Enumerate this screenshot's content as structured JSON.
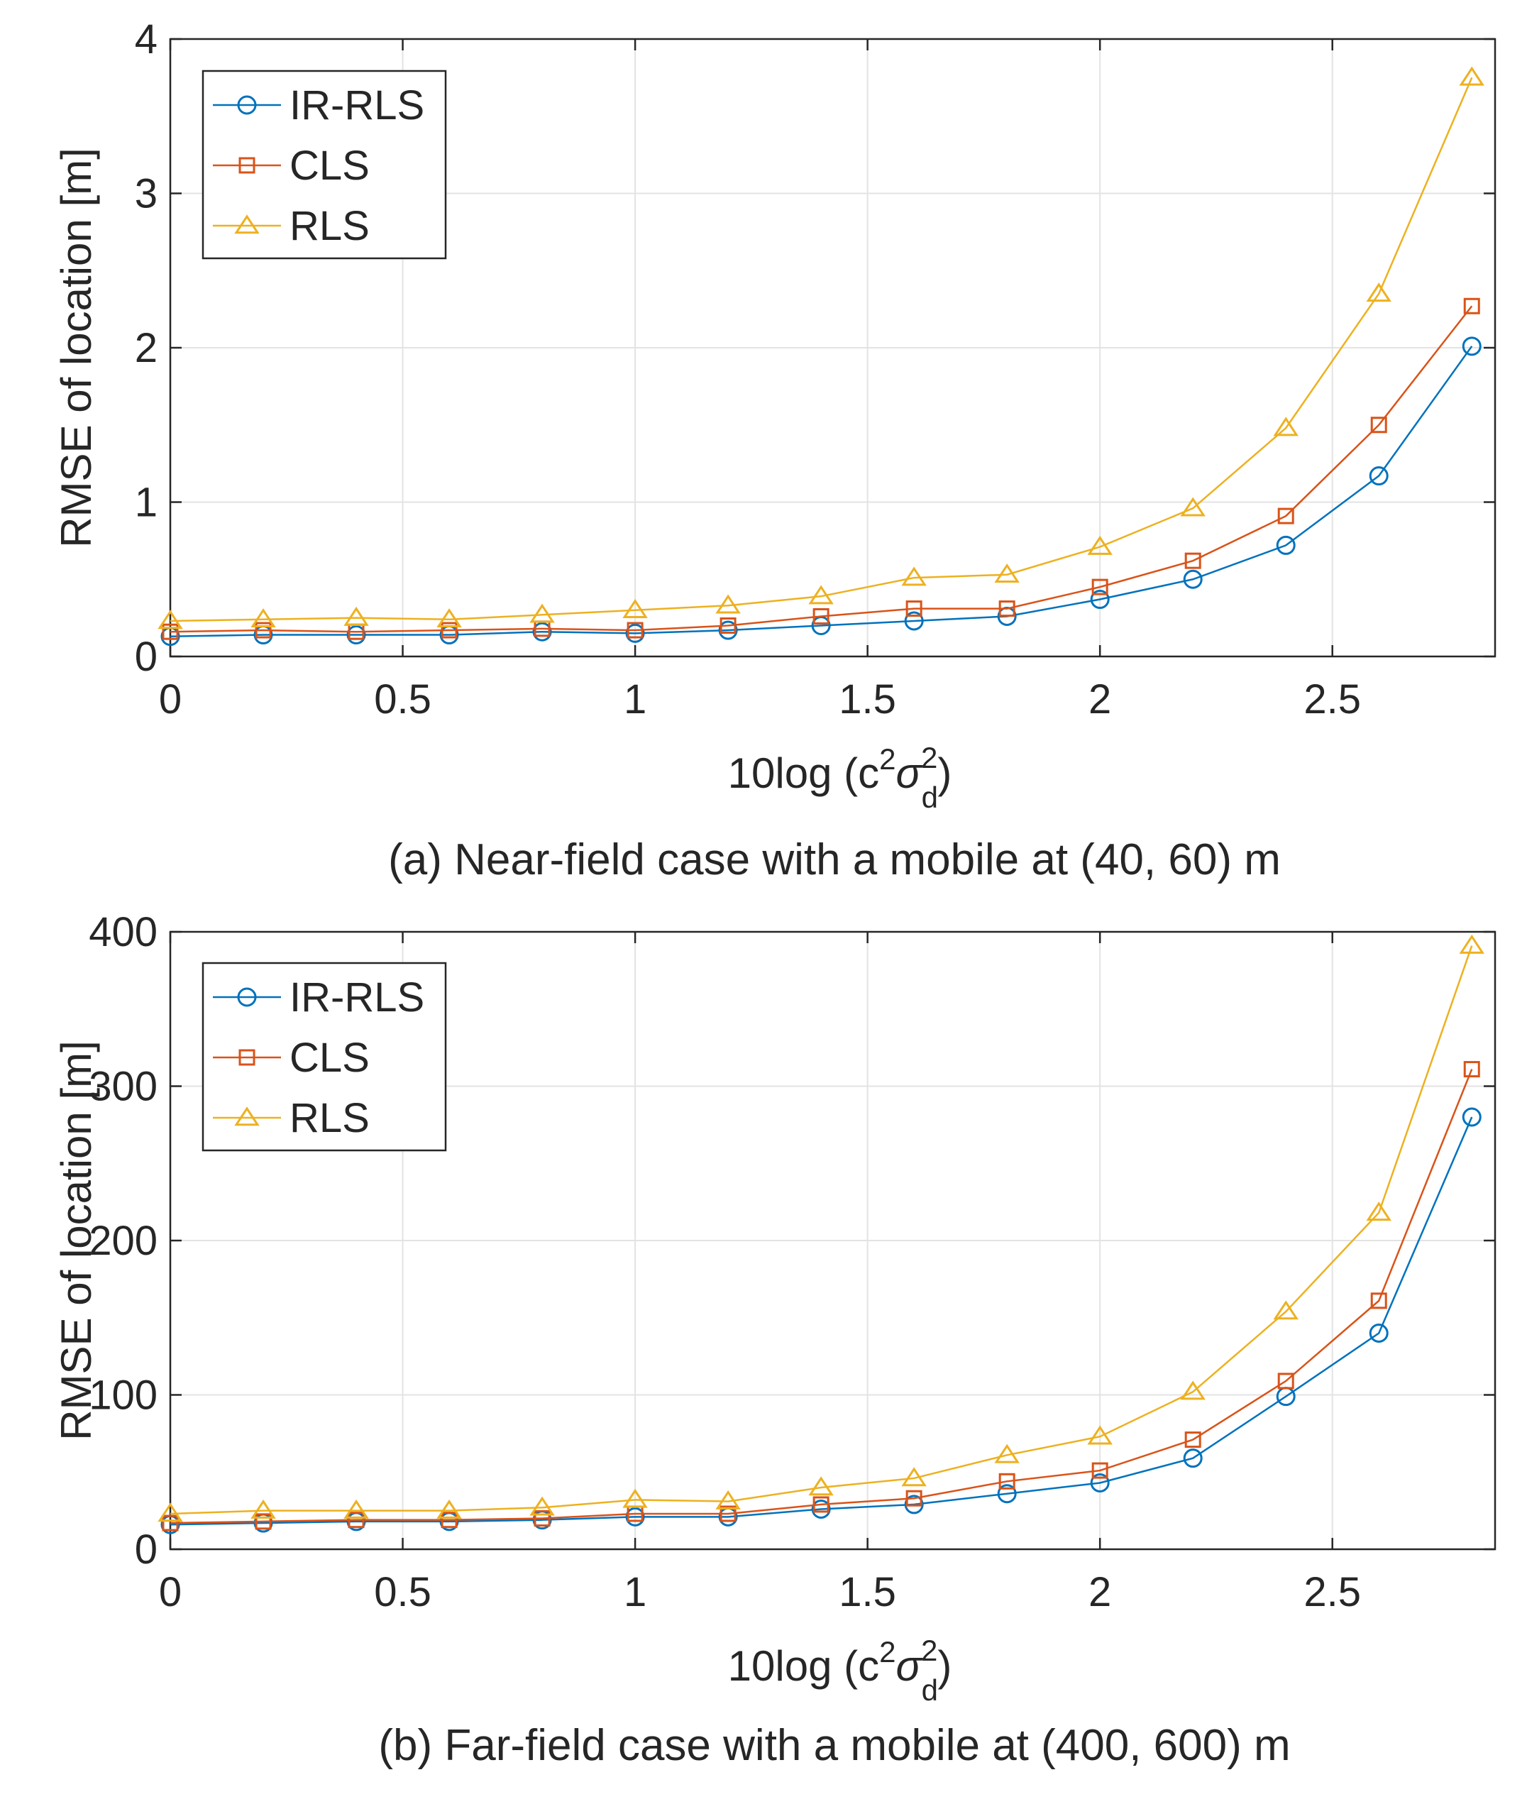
{
  "chart_data": [
    {
      "type": "line",
      "caption": "(a) Near-field case with a mobile at (40, 60) m",
      "xlabel_prefix": "10log (c",
      "xlabel_sigma": "σ",
      "xlabel_sub": "d",
      "xlabel_sup": "2",
      "xlabel_suffix": ")",
      "ylabel": "RMSE of location [m]",
      "xlim": [
        0,
        2.85
      ],
      "ylim": [
        0,
        4
      ],
      "xticks": [
        0,
        0.5,
        1,
        1.5,
        2,
        2.5
      ],
      "xtick_labels": [
        "0",
        "0.5",
        "1",
        "1.5",
        "2",
        "2.5"
      ],
      "yticks": [
        0,
        1,
        2,
        3,
        4
      ],
      "ytick_labels": [
        "0",
        "1",
        "2",
        "3",
        "4"
      ],
      "grid": true,
      "legend_position": "top-left",
      "x": [
        0,
        0.2,
        0.4,
        0.6,
        0.8,
        1.0,
        1.2,
        1.4,
        1.6,
        1.8,
        2.0,
        2.2,
        2.4,
        2.6,
        2.8
      ],
      "series": [
        {
          "name": "IR-RLS",
          "marker": "circle",
          "color": "#0072BD",
          "values": [
            0.13,
            0.14,
            0.14,
            0.14,
            0.16,
            0.15,
            0.17,
            0.2,
            0.23,
            0.26,
            0.37,
            0.5,
            0.72,
            1.17,
            2.01
          ]
        },
        {
          "name": "CLS",
          "marker": "square",
          "color": "#D95319",
          "values": [
            0.16,
            0.17,
            0.16,
            0.17,
            0.18,
            0.17,
            0.2,
            0.26,
            0.31,
            0.31,
            0.45,
            0.62,
            0.91,
            1.5,
            2.27
          ]
        },
        {
          "name": "RLS",
          "marker": "triangle",
          "color": "#EDB120",
          "values": [
            0.23,
            0.24,
            0.25,
            0.24,
            0.27,
            0.3,
            0.33,
            0.39,
            0.51,
            0.53,
            0.71,
            0.96,
            1.48,
            2.35,
            3.75
          ]
        }
      ]
    },
    {
      "type": "line",
      "caption": "(b) Far-field case with a mobile at (400, 600) m",
      "xlabel_prefix": "10log (c",
      "xlabel_sigma": "σ",
      "xlabel_sub": "d",
      "xlabel_sup": "2",
      "xlabel_suffix": ")",
      "ylabel": "RMSE of location [m]",
      "xlim": [
        0,
        2.85
      ],
      "ylim": [
        0,
        400
      ],
      "xticks": [
        0,
        0.5,
        1,
        1.5,
        2,
        2.5
      ],
      "xtick_labels": [
        "0",
        "0.5",
        "1",
        "1.5",
        "2",
        "2.5"
      ],
      "yticks": [
        0,
        100,
        200,
        300,
        400
      ],
      "ytick_labels": [
        "0",
        "100",
        "200",
        "300",
        "400"
      ],
      "grid": true,
      "legend_position": "top-left",
      "x": [
        0,
        0.2,
        0.4,
        0.6,
        0.8,
        1.0,
        1.2,
        1.4,
        1.6,
        1.8,
        2.0,
        2.2,
        2.4,
        2.6,
        2.8
      ],
      "series": [
        {
          "name": "IR-RLS",
          "marker": "circle",
          "color": "#0072BD",
          "values": [
            16,
            17,
            18,
            18,
            19,
            21,
            21,
            26,
            29,
            36,
            43,
            59,
            99,
            140,
            280
          ]
        },
        {
          "name": "CLS",
          "marker": "square",
          "color": "#D95319",
          "values": [
            17,
            18,
            19,
            19,
            20,
            23,
            23,
            29,
            33,
            44,
            51,
            71,
            109,
            161,
            311
          ]
        },
        {
          "name": "RLS",
          "marker": "triangle",
          "color": "#EDB120",
          "values": [
            23,
            25,
            25,
            25,
            27,
            32,
            31,
            40,
            46,
            61,
            73,
            102,
            154,
            218,
            391
          ]
        }
      ]
    }
  ]
}
